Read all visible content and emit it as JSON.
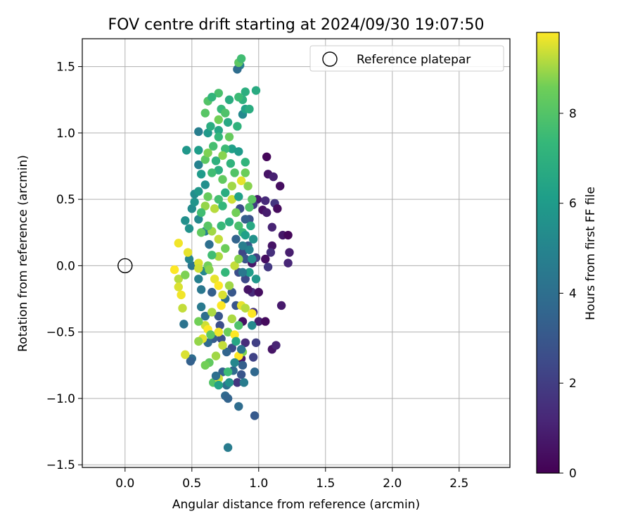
{
  "chart_data": {
    "type": "scatter",
    "title": "FOV centre drift starting at 2024/09/30 19:07:50",
    "xlabel": "Angular distance from reference (arcmin)",
    "ylabel": "Rotation from reference (arcmin)",
    "xlim": [
      -0.32,
      2.88
    ],
    "ylim": [
      -1.52,
      1.71
    ],
    "x_ticks": [
      0.0,
      0.5,
      1.0,
      1.5,
      2.0,
      2.5
    ],
    "x_tick_labels": [
      "0.0",
      "0.5",
      "1.0",
      "1.5",
      "2.0",
      "2.5"
    ],
    "y_ticks": [
      -1.5,
      -1.0,
      -0.5,
      0.0,
      0.5,
      1.0,
      1.5
    ],
    "y_tick_labels": [
      "−1.5",
      "−1.0",
      "−0.5",
      "0.0",
      "0.5",
      "1.0",
      "1.5"
    ],
    "grid": true,
    "legend": {
      "placement": "top-right",
      "entries": [
        {
          "label": "Reference platepar",
          "marker": "open-circle"
        }
      ]
    },
    "reference_point": {
      "x": 0.0,
      "y": 0.0
    },
    "colorbar": {
      "label": "Hours from first FF file",
      "colormap": "viridis",
      "range": [
        0,
        9.8
      ],
      "ticks": [
        0,
        2,
        4,
        6,
        8
      ],
      "tick_labels": [
        "0",
        "2",
        "4",
        "6",
        "8"
      ]
    },
    "series": [
      {
        "points": [
          [
            1.06,
            0.82,
            0.2
          ],
          [
            1.07,
            0.69,
            0.6
          ],
          [
            1.11,
            0.67,
            1.0
          ],
          [
            1.16,
            0.6,
            0.4
          ],
          [
            0.99,
            0.5,
            0.8
          ],
          [
            1.05,
            0.49,
            1.3
          ],
          [
            1.12,
            0.47,
            1.7
          ],
          [
            1.03,
            0.42,
            0.5
          ],
          [
            1.06,
            0.4,
            0.9
          ],
          [
            1.14,
            0.43,
            0.3
          ],
          [
            1.1,
            0.29,
            1.1
          ],
          [
            1.18,
            0.23,
            0.7
          ],
          [
            1.22,
            0.23,
            0.2
          ],
          [
            1.1,
            0.15,
            0.6
          ],
          [
            1.09,
            0.1,
            1.5
          ],
          [
            1.23,
            0.1,
            0.9
          ],
          [
            1.22,
            0.02,
            1.2
          ],
          [
            1.05,
            0.05,
            0.4
          ],
          [
            1.07,
            -0.01,
            1.8
          ],
          [
            0.98,
            0.06,
            2.0
          ],
          [
            0.95,
            0.02,
            0.7
          ],
          [
            0.9,
            -0.1,
            2.4
          ],
          [
            0.95,
            -0.2,
            1.3
          ],
          [
            1.0,
            -0.2,
            0.4
          ],
          [
            0.96,
            -0.35,
            1.6
          ],
          [
            1.0,
            -0.42,
            0.9
          ],
          [
            1.05,
            -0.42,
            0.3
          ],
          [
            1.17,
            -0.3,
            0.8
          ],
          [
            1.1,
            -0.63,
            0.6
          ],
          [
            1.13,
            -0.6,
            1.1
          ],
          [
            0.98,
            -0.58,
            2.1
          ],
          [
            0.9,
            -0.58,
            1.4
          ],
          [
            0.87,
            -0.7,
            0.8
          ],
          [
            0.96,
            -0.69,
            2.2
          ],
          [
            0.84,
            -0.88,
            1.7
          ],
          [
            0.88,
            -0.42,
            0.5
          ],
          [
            0.92,
            -0.18,
            0.6
          ],
          [
            0.86,
            0.43,
            2.6
          ],
          [
            0.93,
            0.35,
            2.8
          ],
          [
            0.96,
            0.46,
            1.9
          ],
          [
            0.88,
            0.1,
            2.3
          ],
          [
            0.92,
            0.15,
            3.1
          ],
          [
            0.9,
            0.35,
            3.3
          ],
          [
            0.83,
            0.2,
            3.5
          ],
          [
            0.85,
            -0.05,
            2.6
          ],
          [
            0.9,
            0.05,
            2.8
          ],
          [
            0.8,
            -0.2,
            3.0
          ],
          [
            0.83,
            -0.3,
            2.9
          ],
          [
            0.8,
            -0.62,
            2.5
          ],
          [
            0.72,
            -0.55,
            2.7
          ],
          [
            0.76,
            -0.65,
            3.6
          ],
          [
            0.66,
            -0.55,
            3.2
          ],
          [
            0.62,
            -0.58,
            3.8
          ],
          [
            0.6,
            -0.38,
            4.0
          ],
          [
            0.57,
            -0.31,
            4.5
          ],
          [
            0.5,
            -0.7,
            3.9
          ],
          [
            0.49,
            -0.72,
            3.4
          ],
          [
            0.44,
            -0.44,
            4.2
          ],
          [
            0.71,
            -0.45,
            2.6
          ],
          [
            0.73,
            -0.8,
            3.4
          ],
          [
            0.81,
            -0.79,
            3.8
          ],
          [
            0.87,
            -0.82,
            2.9
          ],
          [
            0.76,
            -0.9,
            4.1
          ],
          [
            0.75,
            -0.98,
            3.7
          ],
          [
            0.77,
            -1.0,
            3.5
          ],
          [
            0.85,
            -1.06,
            3.9
          ],
          [
            0.97,
            -1.13,
            3.1
          ],
          [
            0.77,
            -1.37,
            4.6
          ],
          [
            0.88,
            -0.75,
            3.3
          ],
          [
            0.97,
            -0.8,
            3.7
          ],
          [
            0.7,
            -0.38,
            3.0
          ],
          [
            0.65,
            -0.2,
            3.3
          ],
          [
            0.75,
            -0.25,
            3.9
          ],
          [
            0.57,
            -0.18,
            4.4
          ],
          [
            0.55,
            -0.1,
            4.8
          ],
          [
            0.59,
            -0.04,
            5.1
          ],
          [
            0.5,
            0.0,
            4.3
          ],
          [
            0.48,
            0.05,
            5.0
          ],
          [
            0.63,
            0.16,
            4.0
          ],
          [
            0.6,
            0.26,
            4.7
          ],
          [
            0.55,
            0.35,
            5.2
          ],
          [
            0.45,
            0.34,
            5.5
          ],
          [
            0.48,
            0.28,
            5.6
          ],
          [
            0.5,
            0.43,
            5.3
          ],
          [
            0.52,
            0.48,
            5.7
          ],
          [
            0.52,
            0.54,
            5.4
          ],
          [
            0.55,
            0.56,
            5.8
          ],
          [
            0.6,
            0.61,
            5.5
          ],
          [
            0.57,
            0.69,
            6.0
          ],
          [
            0.55,
            0.76,
            4.9
          ],
          [
            0.46,
            0.87,
            5.8
          ],
          [
            0.55,
            0.87,
            6.1
          ],
          [
            0.55,
            1.01,
            4.7
          ],
          [
            0.62,
            1.0,
            5.9
          ],
          [
            0.7,
            1.02,
            6.5
          ],
          [
            0.8,
            0.88,
            6.2
          ],
          [
            0.77,
            1.08,
            6.6
          ],
          [
            0.85,
            0.86,
            6.0
          ],
          [
            0.84,
            1.05,
            7.1
          ],
          [
            0.88,
            1.14,
            5.2
          ],
          [
            0.9,
            1.18,
            6.3
          ],
          [
            0.93,
            1.18,
            6.8
          ],
          [
            0.88,
            1.25,
            7.0
          ],
          [
            0.85,
            1.27,
            7.5
          ],
          [
            0.9,
            1.31,
            6.9
          ],
          [
            0.98,
            1.32,
            6.7
          ],
          [
            0.86,
            1.51,
            4.8
          ],
          [
            0.84,
            1.48,
            3.9
          ],
          [
            0.85,
            1.53,
            8.2
          ],
          [
            0.87,
            1.56,
            7.6
          ],
          [
            0.7,
            1.3,
            7.8
          ],
          [
            0.62,
            1.24,
            8.0
          ],
          [
            0.65,
            1.27,
            7.2
          ],
          [
            0.78,
            1.25,
            6.8
          ],
          [
            0.72,
            1.18,
            7.4
          ],
          [
            0.6,
            1.15,
            8.1
          ],
          [
            0.7,
            1.1,
            8.6
          ],
          [
            0.75,
            1.15,
            7.9
          ],
          [
            0.64,
            1.05,
            6.8
          ],
          [
            0.7,
            0.97,
            7.3
          ],
          [
            0.66,
            0.9,
            7.7
          ],
          [
            0.75,
            0.88,
            7.5
          ],
          [
            0.78,
            0.97,
            8.4
          ],
          [
            0.73,
            0.83,
            8.8
          ],
          [
            0.68,
            0.79,
            7.0
          ],
          [
            0.6,
            0.8,
            8.2
          ],
          [
            0.62,
            0.85,
            8.7
          ],
          [
            0.7,
            0.72,
            6.9
          ],
          [
            0.65,
            0.7,
            7.6
          ],
          [
            0.73,
            0.65,
            8.3
          ],
          [
            0.79,
            0.77,
            7.1
          ],
          [
            0.82,
            0.7,
            8.0
          ],
          [
            0.9,
            0.7,
            8.5
          ],
          [
            0.9,
            0.78,
            7.2
          ],
          [
            0.92,
            0.6,
            8.8
          ],
          [
            0.75,
            0.55,
            6.8
          ],
          [
            0.7,
            0.5,
            7.7
          ],
          [
            0.62,
            0.52,
            8.4
          ],
          [
            0.6,
            0.45,
            8.9
          ],
          [
            0.67,
            0.43,
            9.2
          ],
          [
            0.73,
            0.45,
            7.3
          ],
          [
            0.8,
            0.5,
            9.4
          ],
          [
            0.83,
            0.4,
            8.6
          ],
          [
            0.85,
            0.3,
            7.8
          ],
          [
            0.78,
            0.33,
            6.9
          ],
          [
            0.72,
            0.3,
            7.4
          ],
          [
            0.65,
            0.26,
            9.0
          ],
          [
            0.62,
            0.3,
            8.1
          ],
          [
            0.57,
            0.4,
            7.6
          ],
          [
            0.57,
            0.25,
            8.3
          ],
          [
            0.7,
            0.2,
            9.3
          ],
          [
            0.75,
            0.13,
            8.5
          ],
          [
            0.7,
            0.07,
            9.1
          ],
          [
            0.65,
            0.08,
            7.6
          ],
          [
            0.62,
            0.0,
            8.6
          ],
          [
            0.55,
            0.02,
            9.5
          ],
          [
            0.4,
            0.17,
            9.7
          ],
          [
            0.47,
            0.1,
            9.6
          ],
          [
            0.37,
            -0.03,
            9.8
          ],
          [
            0.4,
            -0.1,
            9.2
          ],
          [
            0.4,
            -0.16,
            9.5
          ],
          [
            0.42,
            -0.22,
            9.7
          ],
          [
            0.43,
            -0.32,
            9.3
          ],
          [
            0.45,
            -0.07,
            8.7
          ],
          [
            0.55,
            -0.02,
            9.4
          ],
          [
            0.63,
            -0.03,
            8.8
          ],
          [
            0.67,
            -0.1,
            9.6
          ],
          [
            0.7,
            -0.15,
            9.8
          ],
          [
            0.75,
            -0.05,
            7.3
          ],
          [
            0.78,
            -0.15,
            9.0
          ],
          [
            0.73,
            -0.22,
            9.5
          ],
          [
            0.72,
            -0.3,
            9.8
          ],
          [
            0.65,
            -0.35,
            9.1
          ],
          [
            0.6,
            -0.45,
            9.4
          ],
          [
            0.55,
            -0.42,
            8.6
          ],
          [
            0.58,
            -0.55,
            9.6
          ],
          [
            0.62,
            -0.48,
            9.9
          ],
          [
            0.7,
            -0.5,
            9.7
          ],
          [
            0.73,
            -0.6,
            9.3
          ],
          [
            0.77,
            -0.5,
            8.5
          ],
          [
            0.8,
            -0.4,
            9.1
          ],
          [
            0.82,
            -0.52,
            9.8
          ],
          [
            0.85,
            -0.45,
            7.9
          ],
          [
            0.87,
            -0.3,
            9.6
          ],
          [
            0.9,
            -0.32,
            9.2
          ],
          [
            0.95,
            -0.36,
            9.8
          ],
          [
            0.88,
            -0.65,
            8.7
          ],
          [
            0.85,
            -0.68,
            9.9
          ],
          [
            0.45,
            -0.67,
            9.5
          ],
          [
            0.55,
            -0.57,
            8.9
          ],
          [
            0.63,
            -0.73,
            8.3
          ],
          [
            0.66,
            -0.88,
            8.0
          ],
          [
            0.7,
            -0.85,
            9.4
          ],
          [
            0.68,
            -0.68,
            9.0
          ],
          [
            0.6,
            -0.75,
            8.6
          ],
          [
            0.77,
            -0.8,
            7.5
          ],
          [
            0.64,
            -0.52,
            8.2
          ],
          [
            0.82,
            0.0,
            9.3
          ],
          [
            0.85,
            0.05,
            8.8
          ],
          [
            0.88,
            0.25,
            7.4
          ],
          [
            0.8,
            0.6,
            9.0
          ],
          [
            0.87,
            0.64,
            9.6
          ],
          [
            0.85,
            0.52,
            6.3
          ],
          [
            0.95,
            0.5,
            8.2
          ],
          [
            0.93,
            0.44,
            7.9
          ],
          [
            0.94,
            0.3,
            6.6
          ],
          [
            0.9,
            0.23,
            6.2
          ],
          [
            0.96,
            0.2,
            5.6
          ],
          [
            0.93,
            0.12,
            5.0
          ],
          [
            0.88,
            0.15,
            4.7
          ],
          [
            0.95,
            0.05,
            5.4
          ],
          [
            0.98,
            -0.1,
            5.8
          ],
          [
            0.93,
            -0.05,
            6.1
          ],
          [
            0.88,
            -0.05,
            4.4
          ],
          [
            0.95,
            -0.45,
            5.2
          ],
          [
            0.83,
            -0.57,
            6.5
          ],
          [
            0.87,
            -0.63,
            4.3
          ],
          [
            0.82,
            -0.73,
            5.1
          ],
          [
            0.89,
            -0.88,
            4.6
          ],
          [
            0.78,
            -0.88,
            5.5
          ],
          [
            0.7,
            -0.9,
            6.3
          ],
          [
            0.68,
            -0.83,
            4.0
          ]
        ]
      }
    ]
  }
}
